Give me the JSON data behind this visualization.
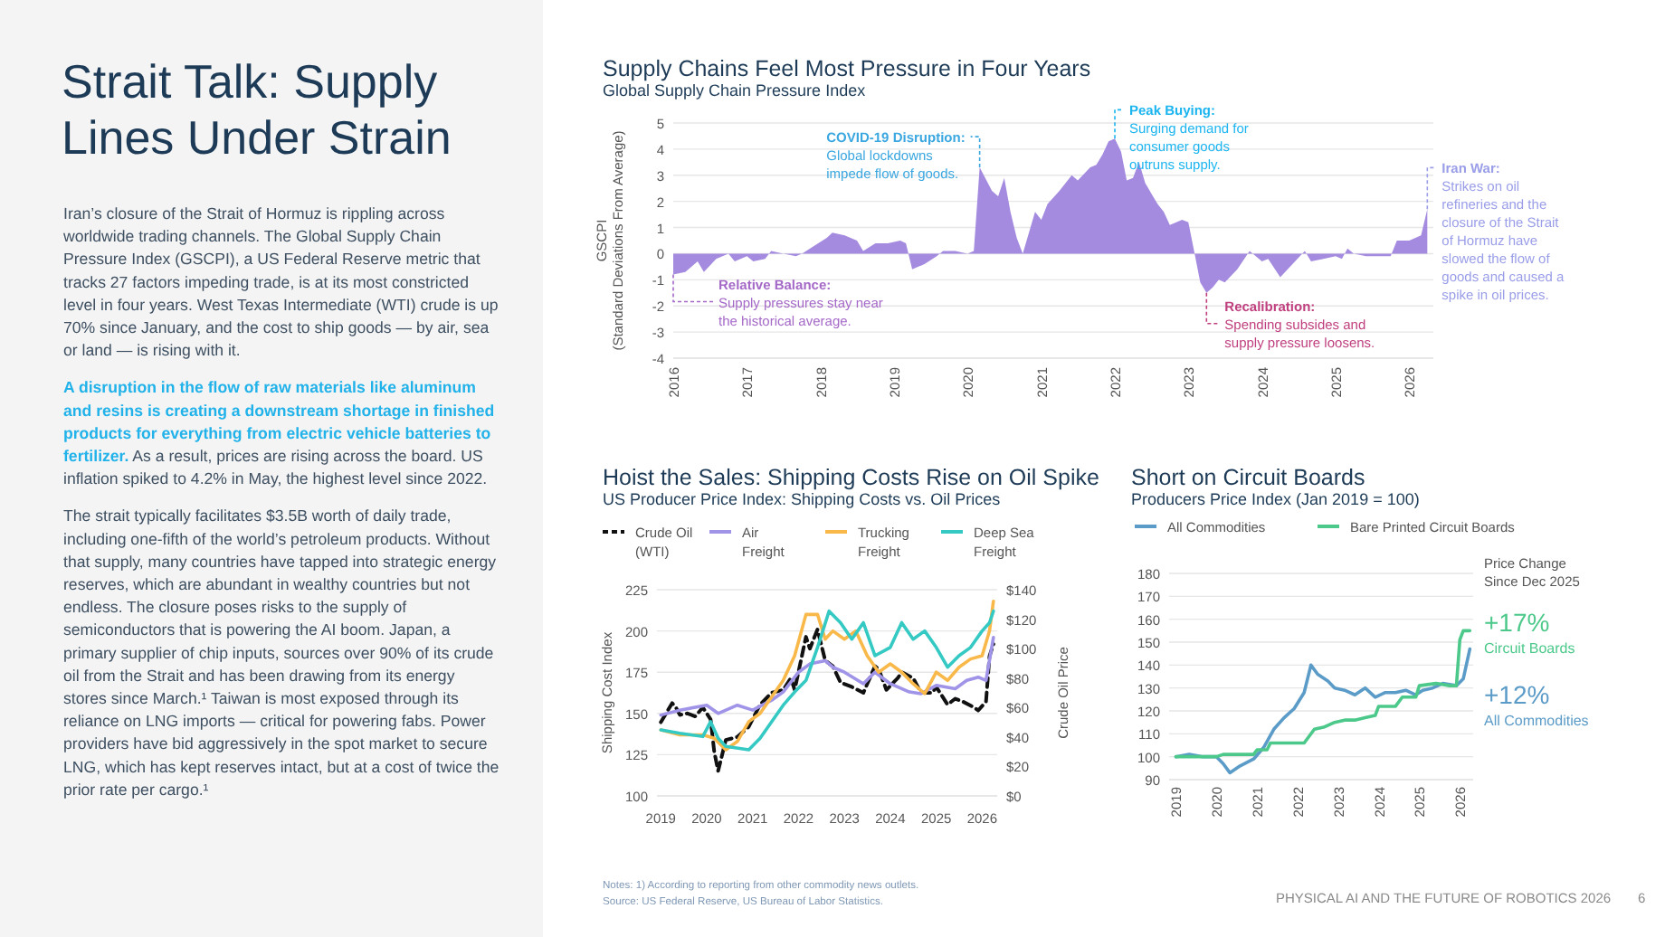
{
  "chart_data": [
    {
      "type": "other",
      "title": "Strait Talk: Supply Lines Under Strain",
      "annotations": [
        "Iran’s closure of the Strait of Hormuz is rippling across worldwide trading channels. The Global Supply Chain Pressure Index (GSCPI), a US Federal Reserve metric that tracks 27 factors impeding trade, is at its most constricted level in four years. West Texas Intermediate (WTI) crude is up 70% since January, and the cost to ship goods — by air, sea or land — is rising with it.",
        "A disruption in the flow of raw materials like aluminum and resins is creating a downstream shortage in finished products for everything from electric vehicle batteries to fertilizer.",
        "As a result, prices are rising across the board. US inflation spiked to 4.2% in May, the highest level since 2022.",
        "The strait typically facilitates $3.5B worth of daily trade, including one-fifth of the world’s petroleum products. Without that supply, many countries have tapped into strategic energy reserves, which are abundant in wealthy countries but not endless. The closure poses risks to the supply of semiconductors that is powering the AI boom. Japan, a primary supplier of chip inputs, sources over 90% of its crude oil from the Strait and has been drawing from its energy stores since March.¹ Taiwan is most exposed through its reliance on LNG imports — critical for powering fabs. Power providers have bid aggressively in the spot market to secure LNG, which has kept reserves intact, but at a cost of twice the prior rate per cargo.¹",
        "Notes: 1) According to reporting from other commodity news outlets.",
        "Source: US Federal Reserve, US Bureau of Labor Statistics.",
        "PHYSICAL AI AND THE FUTURE OF ROBOTICS 2026",
        "6"
      ]
    },
    {
      "type": "area",
      "title": "Supply Chains Feel Most Pressure in Four Years",
      "subtitle": "Global Supply Chain Pressure Index",
      "ylabel": "GSCPI\n(Standard Deviations From Average)",
      "xlim": [
        "2016-01",
        "2026-05"
      ],
      "xticks": [
        "2016",
        "2017",
        "2018",
        "2019",
        "2020",
        "2021",
        "2022",
        "2023",
        "2024",
        "2025",
        "2026"
      ],
      "ylim": [
        -4,
        5
      ],
      "yticks": [
        -4,
        -3,
        -2,
        -1,
        0,
        1,
        2,
        3,
        4,
        5
      ],
      "grid": "y",
      "x": [
        "2016-01",
        "2016-03",
        "2016-05",
        "2016-06",
        "2016-08",
        "2016-10",
        "2016-11",
        "2017-01",
        "2017-02",
        "2017-04",
        "2017-05",
        "2017-07",
        "2017-09",
        "2017-10",
        "2017-12",
        "2018-02",
        "2018-03",
        "2018-05",
        "2018-07",
        "2018-08",
        "2018-10",
        "2018-12",
        "2019-02",
        "2019-03",
        "2019-04",
        "2019-06",
        "2019-08",
        "2019-09",
        "2019-11",
        "2020-01",
        "2020-02",
        "2020-03",
        "2020-05",
        "2020-06",
        "2020-07",
        "2020-08",
        "2020-09",
        "2020-10",
        "2020-12",
        "2021-01",
        "2021-02",
        "2021-04",
        "2021-06",
        "2021-07",
        "2021-09",
        "2021-10",
        "2021-11",
        "2021-12",
        "2022-01",
        "2022-02",
        "2022-03",
        "2022-04",
        "2022-05",
        "2022-06",
        "2022-08",
        "2022-09",
        "2022-10",
        "2022-12",
        "2023-01",
        "2023-02",
        "2023-03",
        "2023-04",
        "2023-05",
        "2023-06",
        "2023-07",
        "2023-09",
        "2023-11",
        "2024-01",
        "2024-02",
        "2024-04",
        "2024-06",
        "2024-08",
        "2024-09",
        "2024-11",
        "2025-01",
        "2025-02",
        "2025-03",
        "2025-04",
        "2025-06",
        "2025-08",
        "2025-10",
        "2025-11",
        "2026-01",
        "2026-03",
        "2026-04"
      ],
      "series": [
        {
          "color": "#a48be0",
          "values": [
            -0.8,
            -0.7,
            -0.3,
            -0.7,
            -0.2,
            0.0,
            -0.3,
            -0.1,
            -0.3,
            -0.2,
            0.1,
            0.0,
            -0.1,
            0.0,
            0.3,
            0.6,
            0.8,
            0.7,
            0.5,
            0.1,
            0.4,
            0.4,
            0.5,
            0.4,
            -0.6,
            -0.4,
            -0.1,
            0.1,
            0.1,
            0.0,
            0.1,
            3.3,
            2.4,
            2.2,
            2.9,
            1.6,
            0.6,
            0.0,
            1.6,
            1.3,
            1.9,
            2.4,
            3.0,
            2.8,
            3.3,
            3.4,
            3.8,
            4.3,
            4.4,
            3.9,
            2.8,
            2.9,
            3.5,
            2.7,
            1.9,
            1.6,
            1.1,
            1.3,
            1.2,
            0.0,
            -1.1,
            -1.5,
            -1.3,
            -1.0,
            -1.1,
            -0.6,
            0.1,
            -0.3,
            -0.2,
            -0.9,
            -0.4,
            0.1,
            -0.3,
            -0.2,
            -0.1,
            -0.2,
            0.2,
            0.0,
            -0.1,
            -0.1,
            -0.1,
            0.5,
            0.5,
            0.7,
            1.7
          ]
        }
      ],
      "annotations": [
        {
          "text": "COVID-19 Disruption:\nGlobal lockdowns\nimpede flow of goods.",
          "x": "2020-03",
          "y": 3.3
        },
        {
          "text": "Peak Buying:\nSurging demand for\nconsumer goods\noutruns supply.",
          "x": "2022-01",
          "y": 4.4
        },
        {
          "text": "Relative Balance:\nSupply pressures stay near\nthe historical average.",
          "x": "2016-01",
          "y": -0.8
        },
        {
          "text": "Recalibration:\nSpending subsides and\nsupply pressure loosens.",
          "x": "2023-04",
          "y": -1.5
        },
        {
          "text": "Iran War:\nStrikes on oil\nrefineries and the\nclosure of the Strait\nof Hormuz have\nslowed the flow of\ngoods and caused a\nspike in oil prices.",
          "x": "2026-04",
          "y": 1.7
        }
      ]
    },
    {
      "type": "line",
      "title": "Hoist the Sales: Shipping Costs Rise on Oil Spike",
      "subtitle": "US Producer Price Index: Shipping Costs vs. Oil Prices",
      "ylabel": "Shipping Cost Index",
      "y2label": "Crude Oil Price",
      "legend": "top",
      "xlim": [
        "2018-12",
        "2026-05"
      ],
      "xticks": [
        "2019",
        "2020",
        "2021",
        "2022",
        "2023",
        "2024",
        "2025",
        "2026"
      ],
      "ylim": [
        100,
        225
      ],
      "yticks": [
        100,
        125,
        150,
        175,
        200,
        225
      ],
      "y2lim": [
        0,
        140
      ],
      "y2ticks": [
        {
          "value": 0,
          "label": "$0"
        },
        {
          "value": 20,
          "label": "$20"
        },
        {
          "value": 40,
          "label": "$40"
        },
        {
          "value": 60,
          "label": "$60"
        },
        {
          "value": 80,
          "label": "$80"
        },
        {
          "value": 100,
          "label": "$100"
        },
        {
          "value": 120,
          "label": "$120"
        },
        {
          "value": 140,
          "label": "$140"
        }
      ],
      "grid": "y",
      "series": [
        {
          "name": "Crude Oil (WTI)",
          "color": "#111111",
          "axis": "y2",
          "line_style": "dashed",
          "x": [
            "2019-01",
            "2019-04",
            "2019-05",
            "2019-06",
            "2019-08",
            "2019-10",
            "2019-12",
            "2020-02",
            "2020-03",
            "2020-04",
            "2020-06",
            "2020-09",
            "2020-12",
            "2021-03",
            "2021-06",
            "2021-09",
            "2021-11",
            "2021-12",
            "2022-03",
            "2022-04",
            "2022-06",
            "2022-08",
            "2022-10",
            "2022-12",
            "2023-03",
            "2023-06",
            "2023-09",
            "2023-10",
            "2023-12",
            "2024-03",
            "2024-04",
            "2024-07",
            "2024-09",
            "2024-12",
            "2025-01",
            "2025-04",
            "2025-06",
            "2025-08",
            "2025-11",
            "2025-12",
            "2026-02",
            "2026-03",
            "2026-04"
          ],
          "values": [
            50,
            63,
            60,
            55,
            56,
            54,
            60,
            52,
            30,
            17,
            38,
            40,
            47,
            62,
            70,
            72,
            80,
            72,
            108,
            100,
            113,
            92,
            88,
            77,
            74,
            70,
            88,
            86,
            72,
            80,
            84,
            80,
            70,
            70,
            74,
            62,
            66,
            64,
            60,
            58,
            64,
            95,
            103
          ]
        },
        {
          "name": "Air Freight",
          "color": "#9f94e8",
          "x": [
            "2019-01",
            "2019-06",
            "2020-01",
            "2020-04",
            "2020-09",
            "2021-01",
            "2021-06",
            "2021-09",
            "2022-01",
            "2022-04",
            "2022-08",
            "2022-10",
            "2023-01",
            "2023-06",
            "2023-09",
            "2024-01",
            "2024-06",
            "2024-09",
            "2025-01",
            "2025-06",
            "2025-09",
            "2025-12",
            "2026-02",
            "2026-04"
          ],
          "values": [
            149,
            152,
            155,
            150,
            155,
            152,
            158,
            163,
            175,
            180,
            182,
            178,
            175,
            168,
            175,
            168,
            163,
            162,
            167,
            165,
            170,
            172,
            170,
            196
          ]
        },
        {
          "name": "Trucking Freight",
          "color": "#f9b94a",
          "x": [
            "2019-01",
            "2019-06",
            "2019-12",
            "2020-03",
            "2020-06",
            "2020-09",
            "2020-12",
            "2021-03",
            "2021-06",
            "2021-09",
            "2021-12",
            "2022-03",
            "2022-06",
            "2022-08",
            "2022-10",
            "2023-01",
            "2023-04",
            "2023-07",
            "2023-10",
            "2024-01",
            "2024-04",
            "2024-07",
            "2024-10",
            "2025-01",
            "2025-04",
            "2025-07",
            "2025-10",
            "2026-01",
            "2026-03",
            "2026-04"
          ],
          "values": [
            140,
            137,
            137,
            135,
            128,
            133,
            145,
            150,
            160,
            170,
            185,
            210,
            210,
            195,
            200,
            195,
            200,
            185,
            175,
            180,
            175,
            168,
            162,
            175,
            170,
            178,
            183,
            185,
            200,
            218
          ]
        },
        {
          "name": "Deep Sea Freight",
          "color": "#35c9c4",
          "x": [
            "2019-01",
            "2019-06",
            "2019-12",
            "2020-02",
            "2020-04",
            "2020-06",
            "2020-12",
            "2021-03",
            "2021-06",
            "2021-09",
            "2021-12",
            "2022-03",
            "2022-06",
            "2022-09",
            "2022-12",
            "2023-03",
            "2023-06",
            "2023-09",
            "2024-01",
            "2024-04",
            "2024-07",
            "2024-10",
            "2025-01",
            "2025-04",
            "2025-07",
            "2025-10",
            "2026-01",
            "2026-03",
            "2026-04"
          ],
          "values": [
            140,
            138,
            136,
            145,
            135,
            130,
            128,
            135,
            145,
            155,
            163,
            170,
            190,
            212,
            205,
            195,
            205,
            185,
            190,
            205,
            195,
            200,
            190,
            178,
            185,
            190,
            200,
            205,
            212
          ]
        }
      ]
    },
    {
      "type": "line",
      "title": "Short on Circuit Boards",
      "subtitle": "Producers Price Index (Jan 2019 = 100)",
      "legend": "top",
      "xlim": [
        "2018-11",
        "2026-05"
      ],
      "xticks": [
        "2019",
        "2020",
        "2021",
        "2022",
        "2023",
        "2024",
        "2025",
        "2026"
      ],
      "ylim": [
        90,
        180
      ],
      "yticks": [
        90,
        100,
        110,
        120,
        130,
        140,
        150,
        160,
        170,
        180
      ],
      "grid": "y",
      "series": [
        {
          "name": "All Commodities",
          "color": "#5b9bc8",
          "x": [
            "2019-01",
            "2019-05",
            "2019-09",
            "2020-01",
            "2020-03",
            "2020-05",
            "2020-08",
            "2020-12",
            "2021-03",
            "2021-06",
            "2021-09",
            "2021-12",
            "2022-03",
            "2022-05",
            "2022-07",
            "2022-10",
            "2022-12",
            "2023-03",
            "2023-06",
            "2023-09",
            "2023-12",
            "2024-03",
            "2024-06",
            "2024-09",
            "2024-12",
            "2025-02",
            "2025-05",
            "2025-08",
            "2025-12",
            "2026-02",
            "2026-04"
          ],
          "values": [
            100,
            101,
            100,
            100,
            97,
            93,
            96,
            99,
            104,
            112,
            117,
            121,
            128,
            140,
            136,
            133,
            130,
            129,
            127,
            130,
            126,
            128,
            128,
            129,
            127,
            129,
            130,
            132,
            131,
            134,
            147
          ]
        },
        {
          "name": "Bare Printed Circuit Boards",
          "color": "#4cc98a",
          "x": [
            "2019-01",
            "2020-01",
            "2020-03",
            "2020-12",
            "2021-01",
            "2021-04",
            "2021-05",
            "2022-03",
            "2022-06",
            "2022-09",
            "2022-12",
            "2023-03",
            "2023-06",
            "2023-09",
            "2023-12",
            "2024-01",
            "2024-06",
            "2024-08",
            "2024-12",
            "2025-01",
            "2025-06",
            "2025-10",
            "2025-12",
            "2026-01",
            "2026-02",
            "2026-04"
          ],
          "values": [
            100,
            100,
            101,
            101,
            103,
            103,
            106,
            106,
            112,
            113,
            115,
            116,
            116,
            117,
            118,
            122,
            122,
            126,
            126,
            131,
            132,
            131,
            131,
            151,
            155,
            155
          ]
        }
      ],
      "annotations": [
        "Price Change\nSince Dec 2025",
        "+17%\nCircuit Boards",
        "+12%\nAll Commodities"
      ]
    }
  ]
}
